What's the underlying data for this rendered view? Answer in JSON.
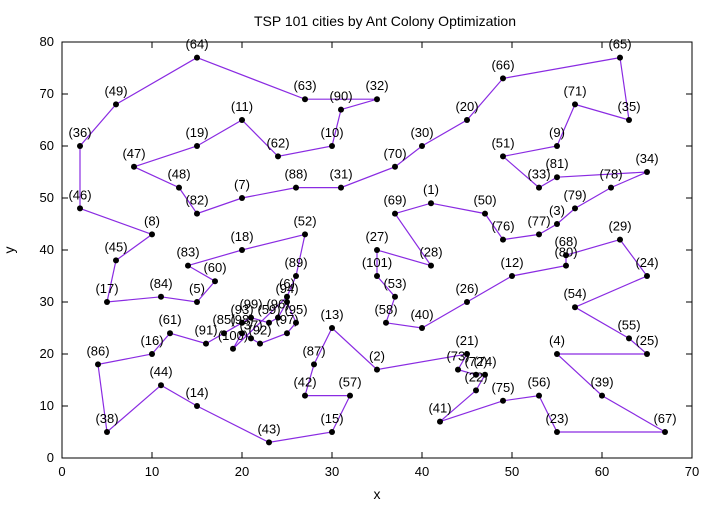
{
  "chart_data": {
    "type": "line",
    "title": "TSP 101 cities by Ant Colony Optimization",
    "xlabel": "x",
    "ylabel": "y",
    "xlim": [
      0,
      70
    ],
    "ylim": [
      0,
      80
    ],
    "xticks": [
      0,
      10,
      20,
      30,
      40,
      50,
      60,
      70
    ],
    "yticks": [
      0,
      10,
      20,
      30,
      40,
      50,
      60,
      70,
      80
    ],
    "grid": false,
    "legend": "none",
    "line_color": "#8a2be2",
    "marker_color": "#000000",
    "tour": [
      {
        "label": "(64)",
        "x": 15,
        "y": 77
      },
      {
        "label": "(63)",
        "x": 27,
        "y": 69
      },
      {
        "label": "(32)",
        "x": 35,
        "y": 69
      },
      {
        "label": "(90)",
        "x": 31,
        "y": 67
      },
      {
        "label": "(10)",
        "x": 30,
        "y": 60
      },
      {
        "label": "(62)",
        "x": 24,
        "y": 58
      },
      {
        "label": "(11)",
        "x": 20,
        "y": 65
      },
      {
        "label": "(19)",
        "x": 15,
        "y": 60
      },
      {
        "label": "(47)",
        "x": 8,
        "y": 56
      },
      {
        "label": "(48)",
        "x": 13,
        "y": 52
      },
      {
        "label": "(82)",
        "x": 15,
        "y": 47
      },
      {
        "label": "(7)",
        "x": 20,
        "y": 50
      },
      {
        "label": "(88)",
        "x": 26,
        "y": 52
      },
      {
        "label": "(31)",
        "x": 31,
        "y": 52
      },
      {
        "label": "(70)",
        "x": 37,
        "y": 56
      },
      {
        "label": "(30)",
        "x": 40,
        "y": 60
      },
      {
        "label": "(20)",
        "x": 45,
        "y": 65
      },
      {
        "label": "(66)",
        "x": 49,
        "y": 73
      },
      {
        "label": "(65)",
        "x": 62,
        "y": 77
      },
      {
        "label": "(35)",
        "x": 63,
        "y": 65
      },
      {
        "label": "(71)",
        "x": 57,
        "y": 68
      },
      {
        "label": "(9)",
        "x": 55,
        "y": 60
      },
      {
        "label": "(51)",
        "x": 49,
        "y": 58
      },
      {
        "label": "(33)",
        "x": 53,
        "y": 52
      },
      {
        "label": "(81)",
        "x": 55,
        "y": 54
      },
      {
        "label": "(34)",
        "x": 65,
        "y": 55
      },
      {
        "label": "(78)",
        "x": 61,
        "y": 52
      },
      {
        "label": "(79)",
        "x": 57,
        "y": 48
      },
      {
        "label": "(3)",
        "x": 55,
        "y": 45
      },
      {
        "label": "(77)",
        "x": 53,
        "y": 43
      },
      {
        "label": "(76)",
        "x": 49,
        "y": 42
      },
      {
        "label": "(50)",
        "x": 47,
        "y": 47
      },
      {
        "label": "(1)",
        "x": 41,
        "y": 49
      },
      {
        "label": "(69)",
        "x": 37,
        "y": 47
      },
      {
        "label": "(28)",
        "x": 41,
        "y": 37
      },
      {
        "label": "(27)",
        "x": 35,
        "y": 40
      },
      {
        "label": "(101)",
        "x": 35,
        "y": 35
      },
      {
        "label": "(53)",
        "x": 37,
        "y": 31
      },
      {
        "label": "(58)",
        "x": 36,
        "y": 26
      },
      {
        "label": "(40)",
        "x": 40,
        "y": 25
      },
      {
        "label": "(26)",
        "x": 45,
        "y": 30
      },
      {
        "label": "(12)",
        "x": 50,
        "y": 35
      },
      {
        "label": "(80)",
        "x": 56,
        "y": 37
      },
      {
        "label": "(68)",
        "x": 56,
        "y": 39
      },
      {
        "label": "(29)",
        "x": 62,
        "y": 42
      },
      {
        "label": "(24)",
        "x": 65,
        "y": 35
      },
      {
        "label": "(54)",
        "x": 57,
        "y": 29
      },
      {
        "label": "(55)",
        "x": 63,
        "y": 23
      },
      {
        "label": "(25)",
        "x": 65,
        "y": 20
      },
      {
        "label": "(4)",
        "x": 55,
        "y": 20
      },
      {
        "label": "(39)",
        "x": 60,
        "y": 12
      },
      {
        "label": "(67)",
        "x": 67,
        "y": 5
      },
      {
        "label": "(23)",
        "x": 55,
        "y": 5
      },
      {
        "label": "(56)",
        "x": 53,
        "y": 12
      },
      {
        "label": "(75)",
        "x": 49,
        "y": 11
      },
      {
        "label": "(41)",
        "x": 42,
        "y": 7
      },
      {
        "label": "(22)",
        "x": 46,
        "y": 13
      },
      {
        "label": "(74)",
        "x": 47,
        "y": 16
      },
      {
        "label": "(72)",
        "x": 46,
        "y": 16
      },
      {
        "label": "(73)",
        "x": 44,
        "y": 17
      },
      {
        "label": "(21)",
        "x": 45,
        "y": 20
      },
      {
        "label": "(2)",
        "x": 35,
        "y": 17
      },
      {
        "label": "(13)",
        "x": 30,
        "y": 25
      },
      {
        "label": "(87)",
        "x": 28,
        "y": 18
      },
      {
        "label": "(42)",
        "x": 27,
        "y": 12
      },
      {
        "label": "(57)",
        "x": 32,
        "y": 12
      },
      {
        "label": "(15)",
        "x": 30,
        "y": 5
      },
      {
        "label": "(43)",
        "x": 23,
        "y": 3
      },
      {
        "label": "(14)",
        "x": 15,
        "y": 10
      },
      {
        "label": "(44)",
        "x": 11,
        "y": 14
      },
      {
        "label": "(38)",
        "x": 5,
        "y": 5
      },
      {
        "label": "(86)",
        "x": 4,
        "y": 18
      },
      {
        "label": "(16)",
        "x": 10,
        "y": 20
      },
      {
        "label": "(61)",
        "x": 12,
        "y": 24
      },
      {
        "label": "(91)",
        "x": 16,
        "y": 22
      },
      {
        "label": "(85)",
        "x": 18,
        "y": 24
      },
      {
        "label": "(93)",
        "x": 20,
        "y": 26
      },
      {
        "label": "(99)",
        "x": 21,
        "y": 27
      },
      {
        "label": "(59)",
        "x": 23,
        "y": 26
      },
      {
        "label": "(96)",
        "x": 24,
        "y": 27
      },
      {
        "label": "(94)",
        "x": 25,
        "y": 30
      },
      {
        "label": "(95)",
        "x": 26,
        "y": 26
      },
      {
        "label": "(97)",
        "x": 25,
        "y": 24
      },
      {
        "label": "(92)",
        "x": 22,
        "y": 22
      },
      {
        "label": "(37)",
        "x": 21,
        "y": 23
      },
      {
        "label": "(98)",
        "x": 20,
        "y": 24
      },
      {
        "label": "(100)",
        "x": 19,
        "y": 21
      },
      {
        "label": "(6)",
        "x": 25,
        "y": 31
      },
      {
        "label": "(89)",
        "x": 26,
        "y": 35
      },
      {
        "label": "(52)",
        "x": 27,
        "y": 43
      },
      {
        "label": "(18)",
        "x": 20,
        "y": 40
      },
      {
        "label": "(83)",
        "x": 14,
        "y": 37
      },
      {
        "label": "(60)",
        "x": 17,
        "y": 34
      },
      {
        "label": "(5)",
        "x": 15,
        "y": 30
      },
      {
        "label": "(84)",
        "x": 11,
        "y": 31
      },
      {
        "label": "(17)",
        "x": 5,
        "y": 30
      },
      {
        "label": "(45)",
        "x": 6,
        "y": 38
      },
      {
        "label": "(8)",
        "x": 10,
        "y": 43
      },
      {
        "label": "(46)",
        "x": 2,
        "y": 48
      },
      {
        "label": "(36)",
        "x": 2,
        "y": 60
      },
      {
        "label": "(49)",
        "x": 6,
        "y": 68
      }
    ]
  }
}
